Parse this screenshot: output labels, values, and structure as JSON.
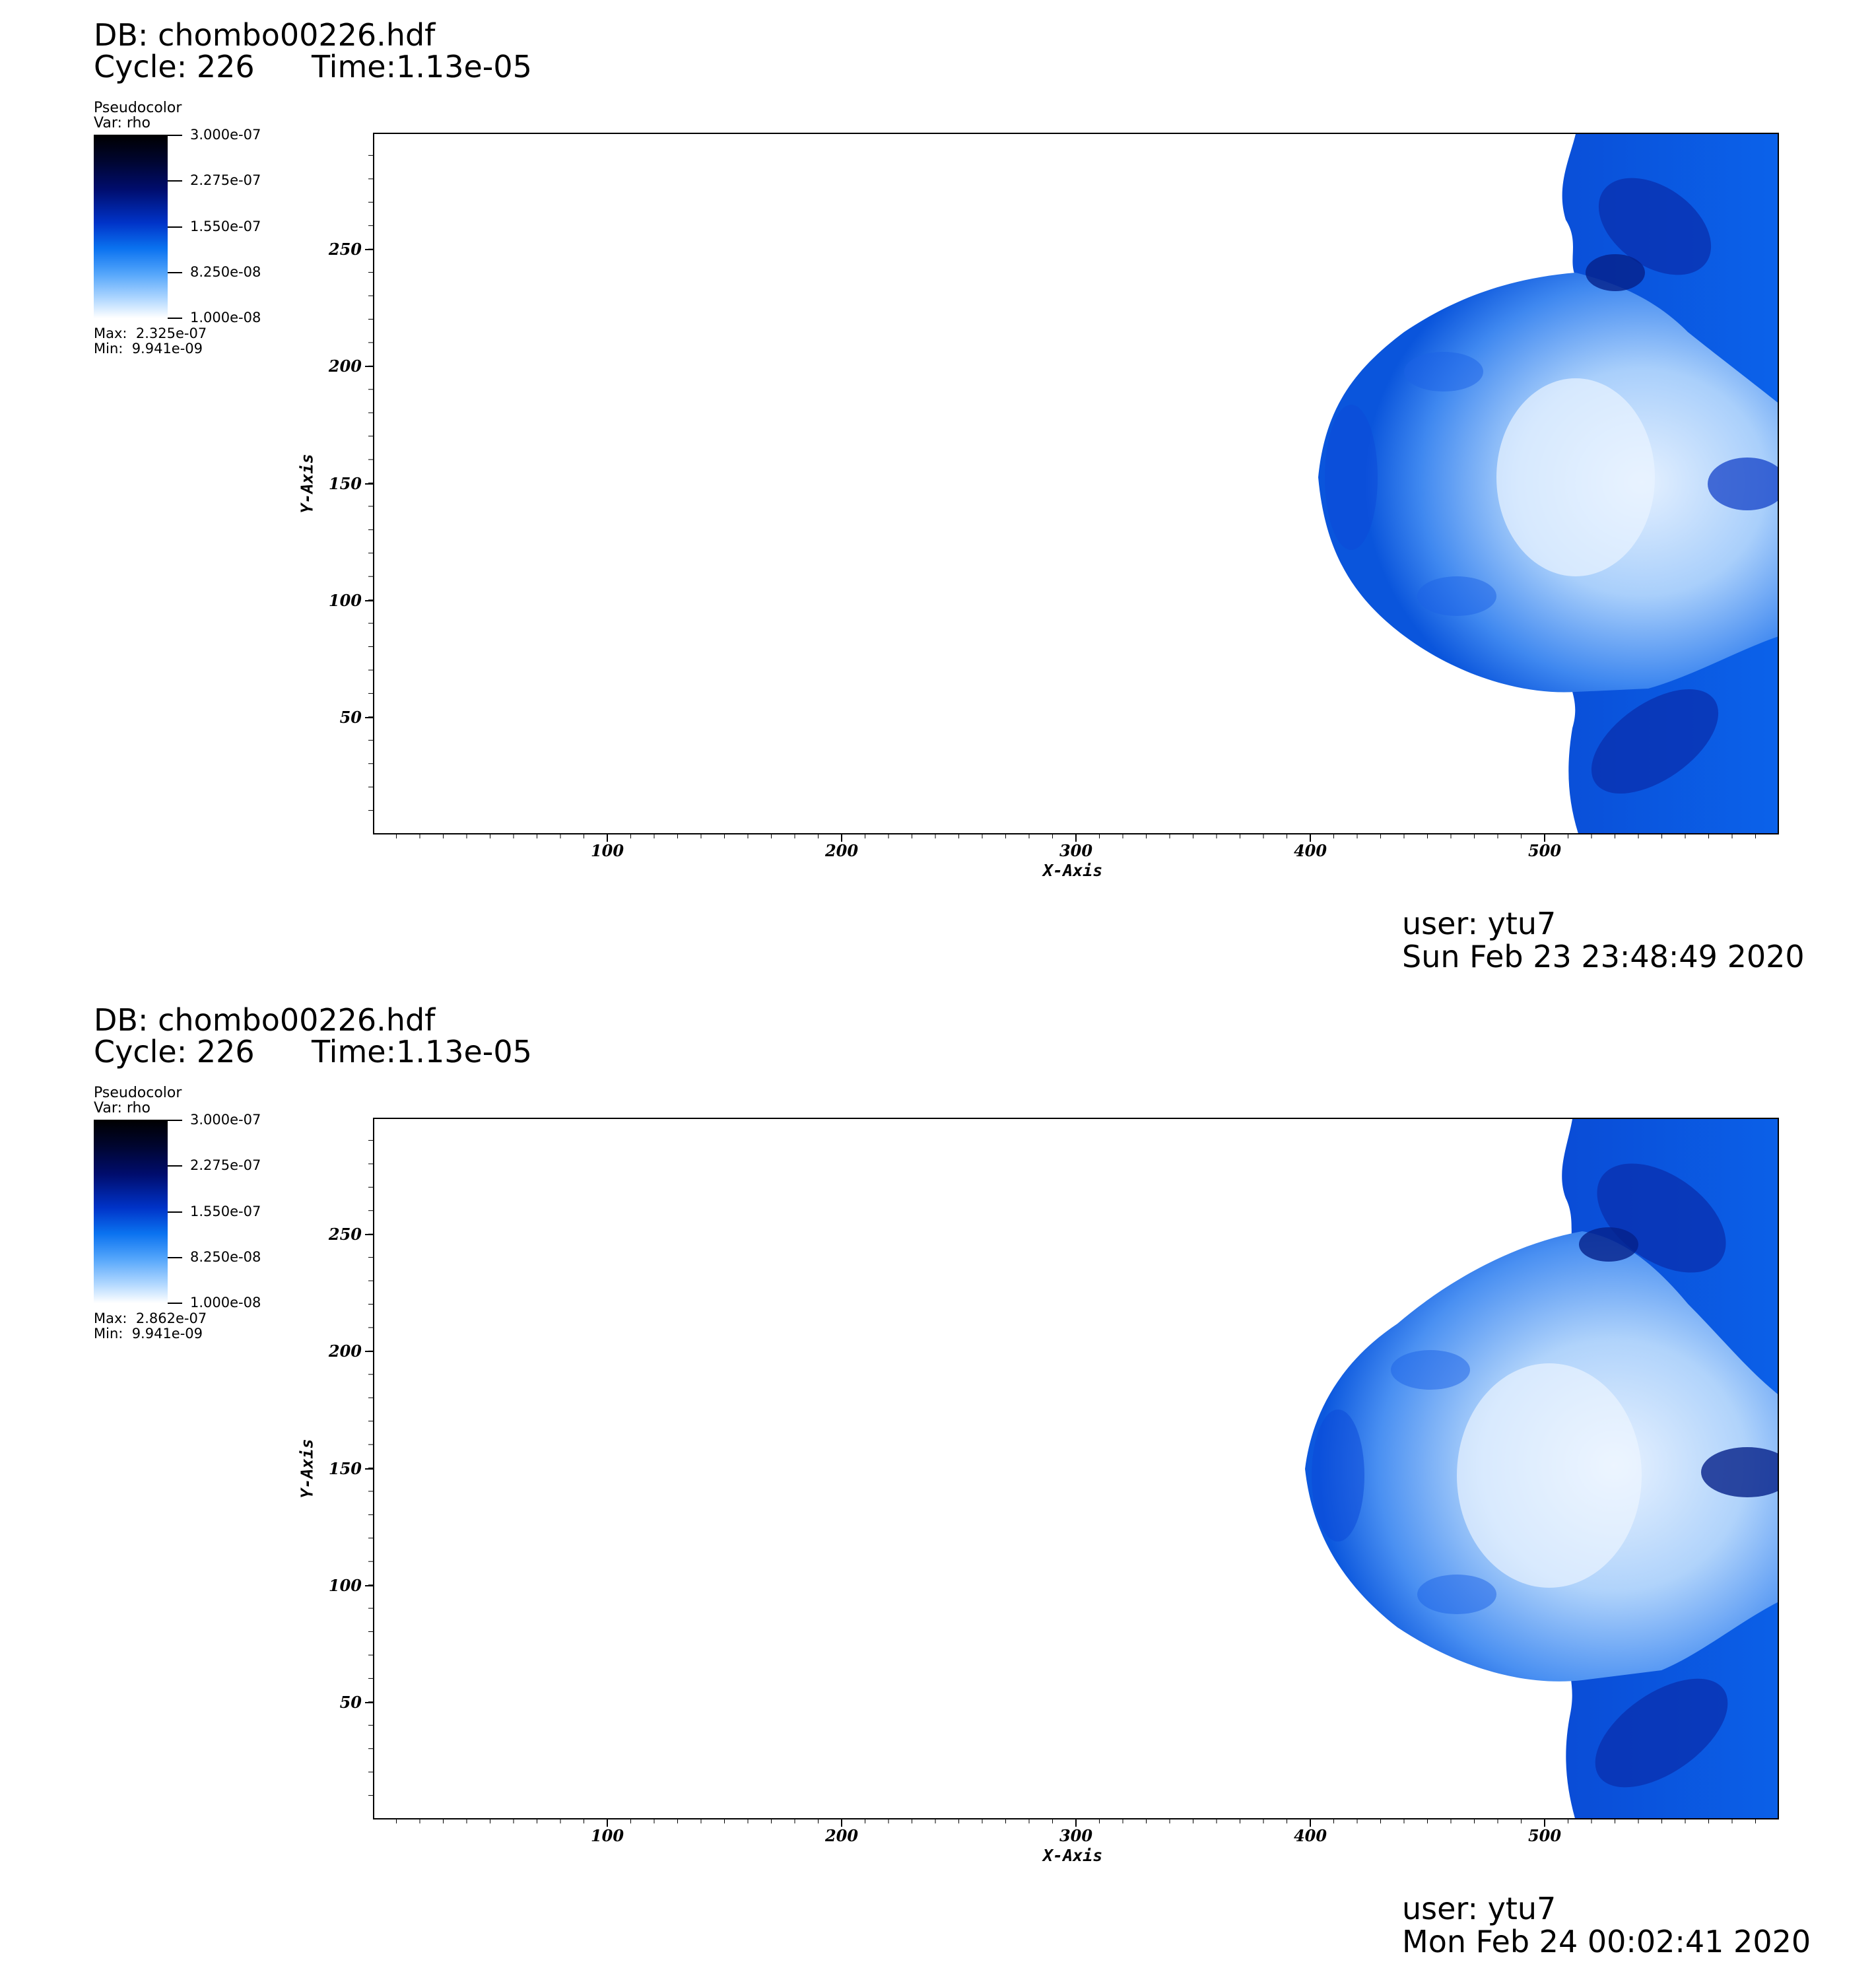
{
  "panels": [
    {
      "db_label": "DB: chombo00226.hdf",
      "cycle_label": "Cycle: 226",
      "time_label": "Time:1.13e-05",
      "plot_type": "Pseudocolor",
      "var_label": "Var: rho",
      "colorbar_ticks": [
        "3.000e-07",
        "2.275e-07",
        "1.550e-07",
        "8.250e-08",
        "1.000e-08"
      ],
      "max_label": "Max:  2.325e-07",
      "min_label": "Min:  9.941e-09",
      "user_label": "user: ytu7",
      "date_label": "Sun Feb 23 23:48:49 2020"
    },
    {
      "db_label": "DB: chombo00226.hdf",
      "cycle_label": "Cycle: 226",
      "time_label": "Time:1.13e-05",
      "plot_type": "Pseudocolor",
      "var_label": "Var: rho",
      "colorbar_ticks": [
        "3.000e-07",
        "2.275e-07",
        "1.550e-07",
        "8.250e-08",
        "1.000e-08"
      ],
      "max_label": "Max:  2.862e-07",
      "min_label": "Min:  9.941e-09",
      "user_label": "user: ytu7",
      "date_label": "Mon Feb 24 00:02:41 2020"
    }
  ],
  "axes": {
    "x_label": "X-Axis",
    "y_label": "Y-Axis",
    "x_ticks": [
      "100",
      "200",
      "300",
      "400",
      "500"
    ],
    "y_ticks": [
      "250",
      "200",
      "150",
      "100",
      "50"
    ],
    "x_range": [
      0,
      600
    ],
    "y_range": [
      0,
      300
    ]
  },
  "colors": {
    "deep": "#001a8c",
    "mid": "#0a5ce6",
    "light": "#7fb8fa",
    "pale": "#d9ebff"
  }
}
